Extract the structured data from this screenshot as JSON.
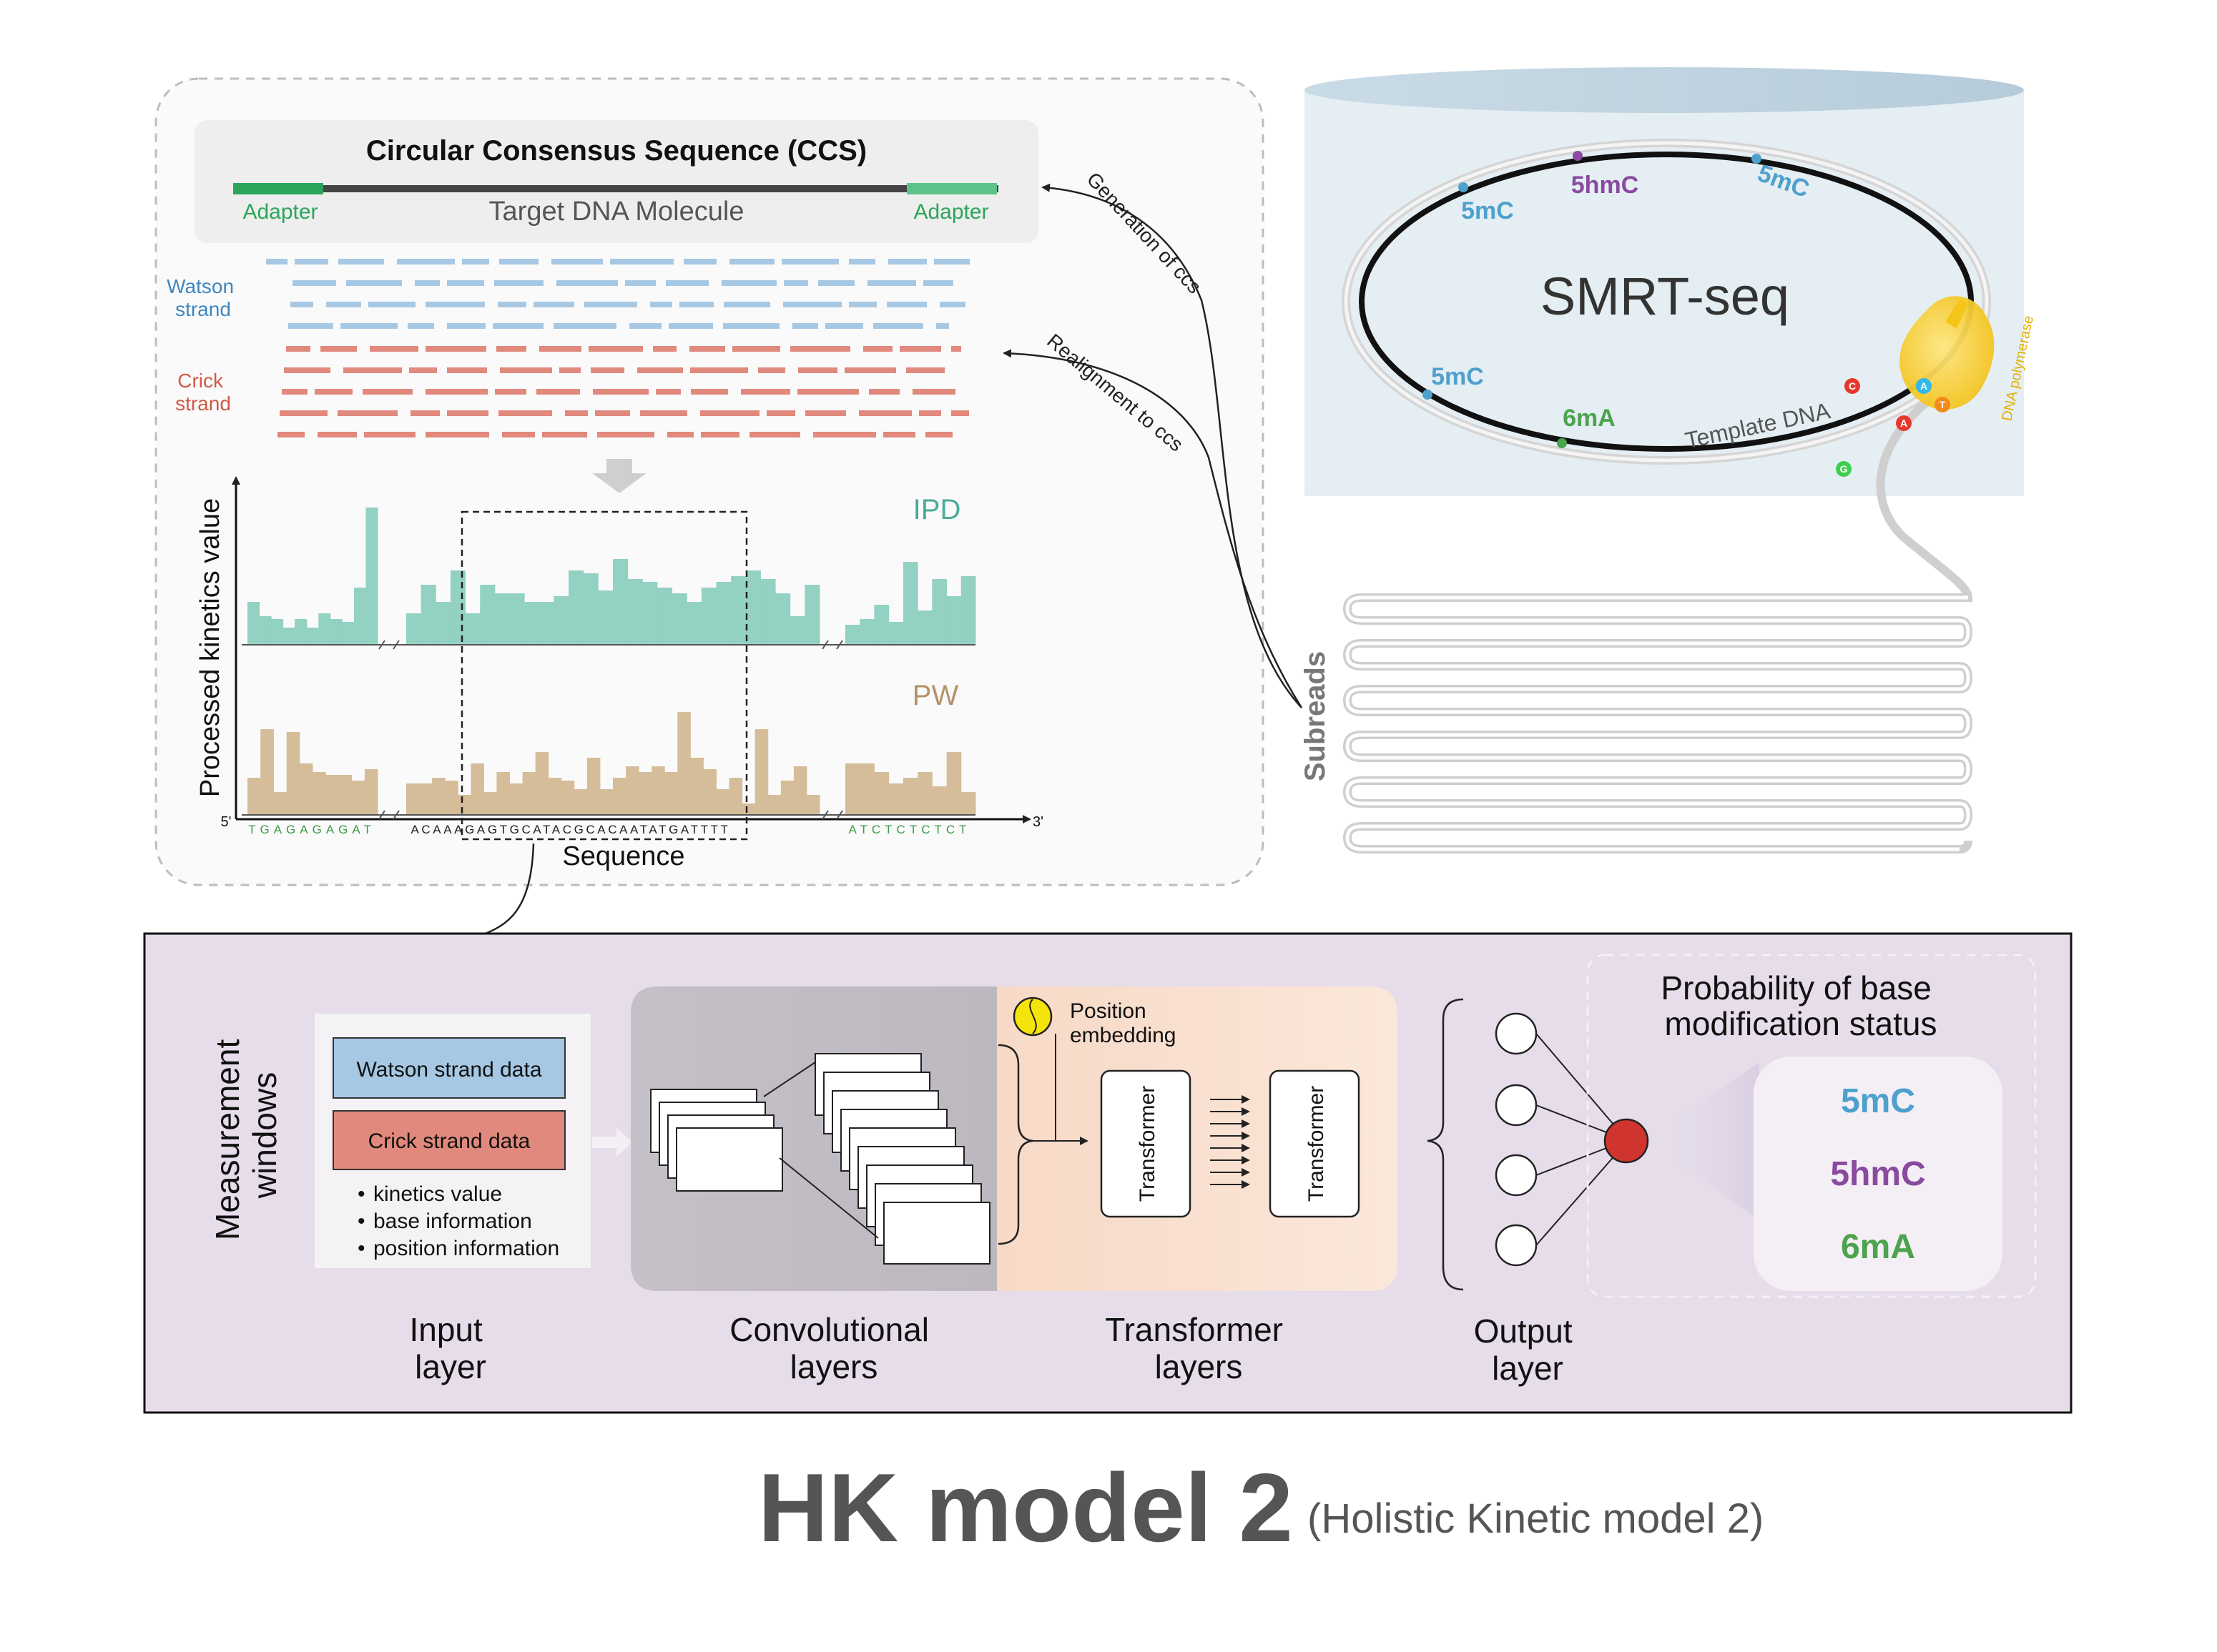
{
  "ccs": {
    "title": "Circular Consensus Sequence (CCS)",
    "adapter_left": "Adapter",
    "adapter_right": "Adapter",
    "molecule": "Target DNA Molecule"
  },
  "strands": {
    "watson": [
      "Watson",
      "strand"
    ],
    "crick": [
      "Crick",
      "strand"
    ]
  },
  "arrows": {
    "generation": "Generation of ccs",
    "realignment": "Realignment to ccs"
  },
  "smrt": {
    "title": "SMRT-seq",
    "mods": {
      "m1": "5mC",
      "m2": "5hmC",
      "m3": "5mC",
      "m4": "5mC",
      "m5": "6mA"
    },
    "template": "Template DNA",
    "polymerase": "DNA polymerase",
    "nucleotides": {
      "n1": "C",
      "n2": "A",
      "n3": "T",
      "n4": "A",
      "n5": "G"
    },
    "subreads": "Subreads"
  },
  "kinetics": {
    "ylabel": "Processed kinetics value",
    "xlabel": "Sequence",
    "ipd": "IPD",
    "pw": "PW",
    "five_prime": "5'",
    "three_prime": "3'",
    "seq1": "TGAGAGAGAT",
    "seq2": "ACAAAGAGTGCATACGCACAATATGATTTT",
    "seq3": "ATCTCTCTCT",
    "ipd_values": {
      "g1": [
        30,
        20,
        18,
        12,
        18,
        12,
        22,
        18,
        16,
        40,
        96
      ],
      "g2": [
        22,
        42,
        30,
        52,
        22,
        42,
        36,
        36,
        30,
        30,
        34,
        52,
        50,
        38,
        60,
        46,
        44,
        40,
        36,
        30,
        40,
        44,
        48,
        52,
        46,
        36,
        20,
        42
      ],
      "g3": [
        14,
        18,
        28,
        16,
        58,
        24,
        46,
        34,
        48
      ]
    },
    "pw_values": {
      "g1": [
        26,
        60,
        16,
        58,
        36,
        30,
        28,
        28,
        24,
        32
      ],
      "g2": [
        22,
        22,
        26,
        24,
        14,
        36,
        16,
        30,
        22,
        30,
        44,
        26,
        24,
        18,
        40,
        18,
        26,
        34,
        30,
        34,
        30,
        72,
        40,
        32,
        18,
        26,
        8,
        60,
        14,
        24,
        34,
        14
      ],
      "g3": [
        36,
        36,
        30,
        22,
        26,
        30,
        20,
        44,
        16
      ]
    }
  },
  "model": {
    "side": [
      "Measurement",
      "windows"
    ],
    "input": {
      "watson": "Watson strand data",
      "crick": "Crick strand data",
      "bullets": [
        "kinetics value",
        "base information",
        "position information"
      ],
      "label": [
        "Input",
        "layer"
      ]
    },
    "conv_label": [
      "Convolutional",
      "layers"
    ],
    "pos": [
      "Position",
      "embedding"
    ],
    "transformer": "Transformer",
    "trans_label": [
      "Transformer",
      "layers"
    ],
    "output_label": [
      "Output",
      "layer"
    ],
    "prob_title": [
      "Probability of base",
      "modification status"
    ],
    "classes": [
      "5mC",
      "5hmC",
      "6mA"
    ]
  },
  "title": {
    "main": "HK model 2",
    "sub": "(Holistic Kinetic model 2)"
  },
  "colors": {
    "watson": "#a6c8e4",
    "crick": "#e0897c",
    "adapter": "#2ba55a",
    "ipd": "#93d1c3",
    "pw": "#d6bd99",
    "purple_panel": "#e6dcea",
    "c5mC": "#4ea0cd",
    "c5hmC": "#8a4aa0",
    "c6mA": "#4da34e",
    "output_node": "#d0342e"
  }
}
